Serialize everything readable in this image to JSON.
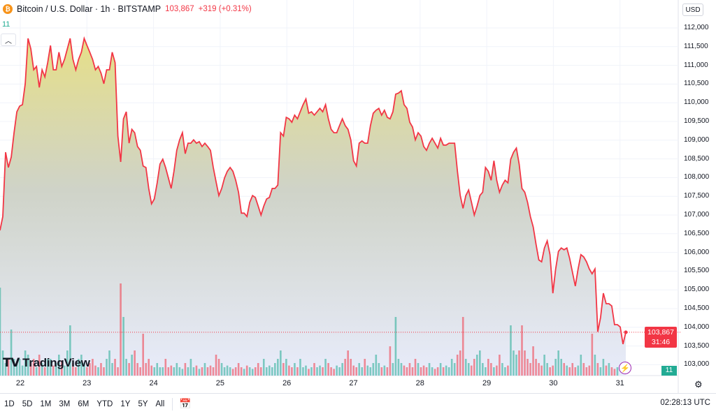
{
  "header": {
    "symbol": "Bitcoin / U.S. Dollar · 1h · BITSTAMP",
    "coin_icon": "bitcoin-icon",
    "last": "103,867",
    "change": "+319 (+0.31%)"
  },
  "volume_label": "11",
  "currency": "USD",
  "price_labels": [
    "112,000",
    "111,500",
    "111,000",
    "110,500",
    "110,000",
    "109,500",
    "109,000",
    "108,500",
    "108,000",
    "107,500",
    "107,000",
    "106,500",
    "106,000",
    "105,500",
    "105,000",
    "104,500",
    "104,000",
    "103,500",
    "103,000"
  ],
  "price_box": {
    "price": "103,867",
    "countdown": "31:46"
  },
  "volume_box": "11",
  "days": [
    "22",
    "23",
    "24",
    "25",
    "26",
    "27",
    "28",
    "29",
    "30",
    "31"
  ],
  "logo": "TradingView",
  "ranges": [
    "1D",
    "5D",
    "1M",
    "3M",
    "6M",
    "YTD",
    "1Y",
    "5Y",
    "All"
  ],
  "clock": "02:28:13 UTC",
  "colors": {
    "line": "#f23645",
    "up": "#22ab94",
    "down": "#f23645"
  },
  "chart_data": {
    "type": "area",
    "interval": "1h",
    "y_range": [
      102800,
      112300
    ],
    "prices": [
      106590,
      106960,
      108680,
      108270,
      108550,
      109200,
      109760,
      109910,
      109950,
      110510,
      111720,
      111440,
      110880,
      110970,
      110410,
      110880,
      110690,
      111070,
      111530,
      110880,
      110880,
      111350,
      110970,
      111160,
      111440,
      111720,
      111160,
      110880,
      111160,
      111350,
      111720,
      111530,
      111350,
      111160,
      110880,
      110970,
      110790,
      110510,
      110880,
      110880,
      111350,
      111070,
      109110,
      108420,
      109570,
      109760,
      108920,
      109290,
      109200,
      108830,
      108730,
      108310,
      108270,
      107710,
      107300,
      107430,
      107860,
      108360,
      108490,
      108270,
      107990,
      107710,
      108170,
      108730,
      109010,
      109200,
      108640,
      108920,
      108920,
      109010,
      108920,
      108960,
      108830,
      108920,
      108830,
      108730,
      108270,
      107890,
      107520,
      107710,
      107990,
      108170,
      108270,
      108170,
      107930,
      107610,
      107050,
      107050,
      106960,
      107340,
      107520,
      107470,
      107240,
      107000,
      107240,
      107430,
      107470,
      107710,
      107710,
      107800,
      109200,
      109110,
      109610,
      109570,
      109480,
      109670,
      109570,
      109760,
      109950,
      110100,
      109720,
      109760,
      109670,
      109760,
      109850,
      109760,
      109950,
      109570,
      109290,
      109200,
      109200,
      109390,
      109570,
      109390,
      109290,
      109010,
      108450,
      108310,
      108920,
      108980,
      108920,
      108920,
      109390,
      109720,
      109800,
      109850,
      109670,
      109800,
      109610,
      109570,
      109760,
      110230,
      110260,
      110320,
      109950,
      109850,
      109480,
      109350,
      109010,
      109200,
      109110,
      108830,
      108730,
      108920,
      109050,
      108920,
      108790,
      109050,
      108870,
      108870,
      108920,
      108920,
      108920,
      108170,
      107520,
      107180,
      107520,
      107670,
      107340,
      107000,
      107240,
      107520,
      107610,
      108270,
      108170,
      107930,
      108450,
      107930,
      107610,
      107800,
      107930,
      107860,
      108490,
      108680,
      108790,
      108360,
      107710,
      107610,
      107340,
      106960,
      106680,
      106220,
      105800,
      105750,
      106120,
      106310,
      105940,
      104910,
      105560,
      106030,
      106120,
      106070,
      106120,
      105840,
      105470,
      105100,
      105560,
      105940,
      105880,
      105750,
      105560,
      105430,
      105560,
      103880,
      104260,
      104910,
      104630,
      104630,
      104570,
      104070,
      104070,
      104010,
      103550,
      103867
    ],
    "volume": [
      10.5,
      3,
      1.5,
      2,
      5.5,
      2,
      1.5,
      2,
      1.2,
      3,
      2.5,
      1.5,
      2,
      1,
      2.5,
      1.5,
      1,
      2,
      2,
      1.2,
      1.5,
      2.5,
      1.8,
      1.2,
      3,
      6,
      1.5,
      1,
      2,
      2.5,
      1.5,
      1,
      1.5,
      2,
      1.2,
      1,
      1.5,
      1,
      2,
      3,
      1.5,
      2,
      1,
      11,
      7,
      2,
      1.5,
      2.5,
      3,
      1.5,
      1,
      5,
      1.5,
      2,
      1.2,
      1,
      1.5,
      1,
      1,
      2,
      1,
      1.2,
      1,
      1.5,
      1,
      0.8,
      1.5,
      1,
      2,
      1,
      1.2,
      0.8,
      1,
      1.5,
      1,
      1.2,
      1,
      2.5,
      2,
      1.5,
      1,
      1.2,
      1,
      0.8,
      1,
      1.5,
      1,
      0.8,
      1.2,
      1,
      0.8,
      1,
      1.5,
      1,
      2,
      1,
      1.2,
      1,
      1.5,
      2,
      3,
      1.5,
      2,
      1.2,
      1,
      1.5,
      1,
      2,
      1,
      1.2,
      0.8,
      1,
      1.5,
      1,
      1.2,
      1,
      2,
      1.5,
      1,
      0.8,
      1.2,
      1,
      1.5,
      2,
      3,
      2,
      1.2,
      1,
      1.5,
      1,
      2,
      1.2,
      1,
      1.5,
      2.5,
      1.5,
      1,
      1.2,
      1,
      3.5,
      1.5,
      7,
      2,
      1.5,
      1.2,
      1,
      1.5,
      1,
      2,
      1.5,
      1,
      1.2,
      1,
      1.5,
      1,
      0.8,
      1,
      1.5,
      1,
      1.2,
      1,
      2,
      1.5,
      2.5,
      3,
      7,
      2,
      1.5,
      1.2,
      2,
      2.5,
      3,
      1.5,
      1,
      2,
      1.5,
      1,
      1.2,
      2.5,
      1.5,
      1,
      1.2,
      6,
      3,
      2.5,
      3,
      6,
      3,
      2,
      1.5,
      3.5,
      2,
      1.5,
      1.2,
      2.5,
      1.5,
      1,
      1.2,
      2,
      3,
      2,
      1.5,
      1.2,
      1,
      1.5,
      1,
      1.2,
      2.5,
      1.5,
      1,
      1.2,
      5,
      2.5,
      1.5,
      1,
      2,
      1.2,
      1.5,
      1,
      0.8,
      1
    ],
    "last_price": 103867
  }
}
